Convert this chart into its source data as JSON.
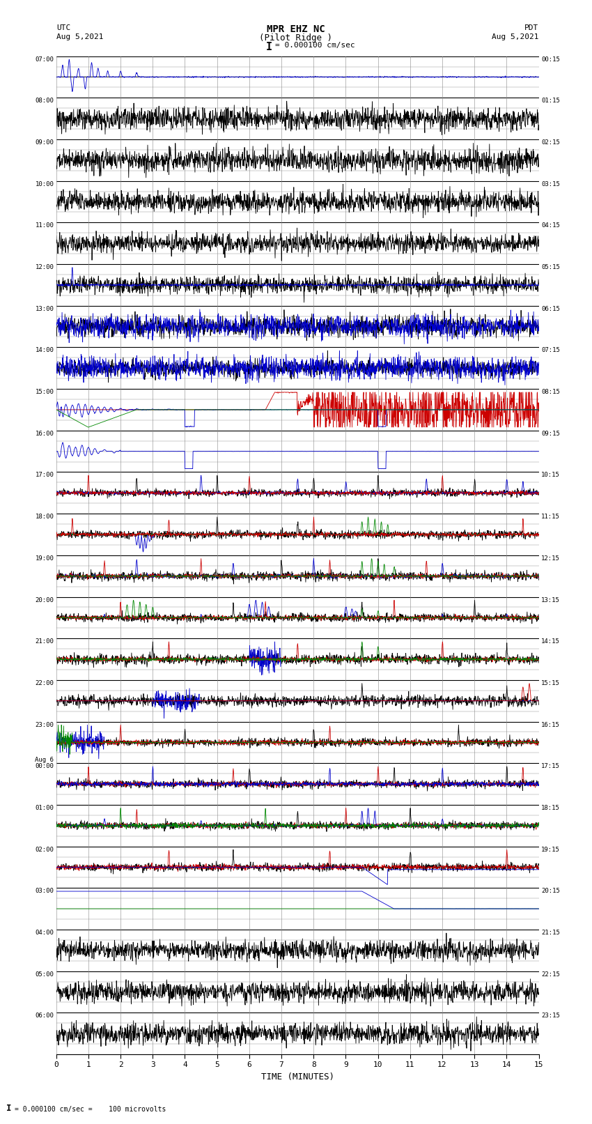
{
  "title_line1": "MPR EHZ NC",
  "title_line2": "(Pilot Ridge )",
  "scale_text": "I = 0.000100 cm/sec",
  "utc_label": "UTC",
  "utc_date": "Aug 5,2021",
  "pdt_label": "PDT",
  "pdt_date": "Aug 5,2021",
  "bottom_label": "TIME (MINUTES)",
  "bottom_scale": "= 0.000100 cm/sec =    100 microvolts",
  "x_min": 0,
  "x_max": 15,
  "bg_color": "#ffffff",
  "grid_color": "#888888",
  "major_line_color": "#000000",
  "trace_color_blue": "#0000cc",
  "trace_color_red": "#cc0000",
  "trace_color_green": "#008800",
  "trace_color_black": "#000000",
  "fig_width": 8.5,
  "fig_height": 16.13,
  "rows": [
    {
      "label_left": "07:00",
      "label_right": "00:15"
    },
    {
      "label_left": "08:00",
      "label_right": "01:15"
    },
    {
      "label_left": "09:00",
      "label_right": "02:15"
    },
    {
      "label_left": "10:00",
      "label_right": "03:15"
    },
    {
      "label_left": "11:00",
      "label_right": "04:15"
    },
    {
      "label_left": "12:00",
      "label_right": "05:15"
    },
    {
      "label_left": "13:00",
      "label_right": "06:15"
    },
    {
      "label_left": "14:00",
      "label_right": "07:15"
    },
    {
      "label_left": "15:00",
      "label_right": "08:15"
    },
    {
      "label_left": "16:00",
      "label_right": "09:15"
    },
    {
      "label_left": "17:00",
      "label_right": "10:15"
    },
    {
      "label_left": "18:00",
      "label_right": "11:15"
    },
    {
      "label_left": "19:00",
      "label_right": "12:15"
    },
    {
      "label_left": "20:00",
      "label_right": "13:15"
    },
    {
      "label_left": "21:00",
      "label_right": "14:15"
    },
    {
      "label_left": "22:00",
      "label_right": "15:15"
    },
    {
      "label_left": "23:00",
      "label_right": "16:15"
    },
    {
      "label_left": "Aug 6\n00:00",
      "label_right": "17:15"
    },
    {
      "label_left": "01:00",
      "label_right": "18:15"
    },
    {
      "label_left": "02:00",
      "label_right": "19:15"
    },
    {
      "label_left": "03:00",
      "label_right": "20:15"
    },
    {
      "label_left": "04:00",
      "label_right": "21:15"
    },
    {
      "label_left": "05:00",
      "label_right": "22:15"
    },
    {
      "label_left": "06:00",
      "label_right": "23:15"
    }
  ]
}
